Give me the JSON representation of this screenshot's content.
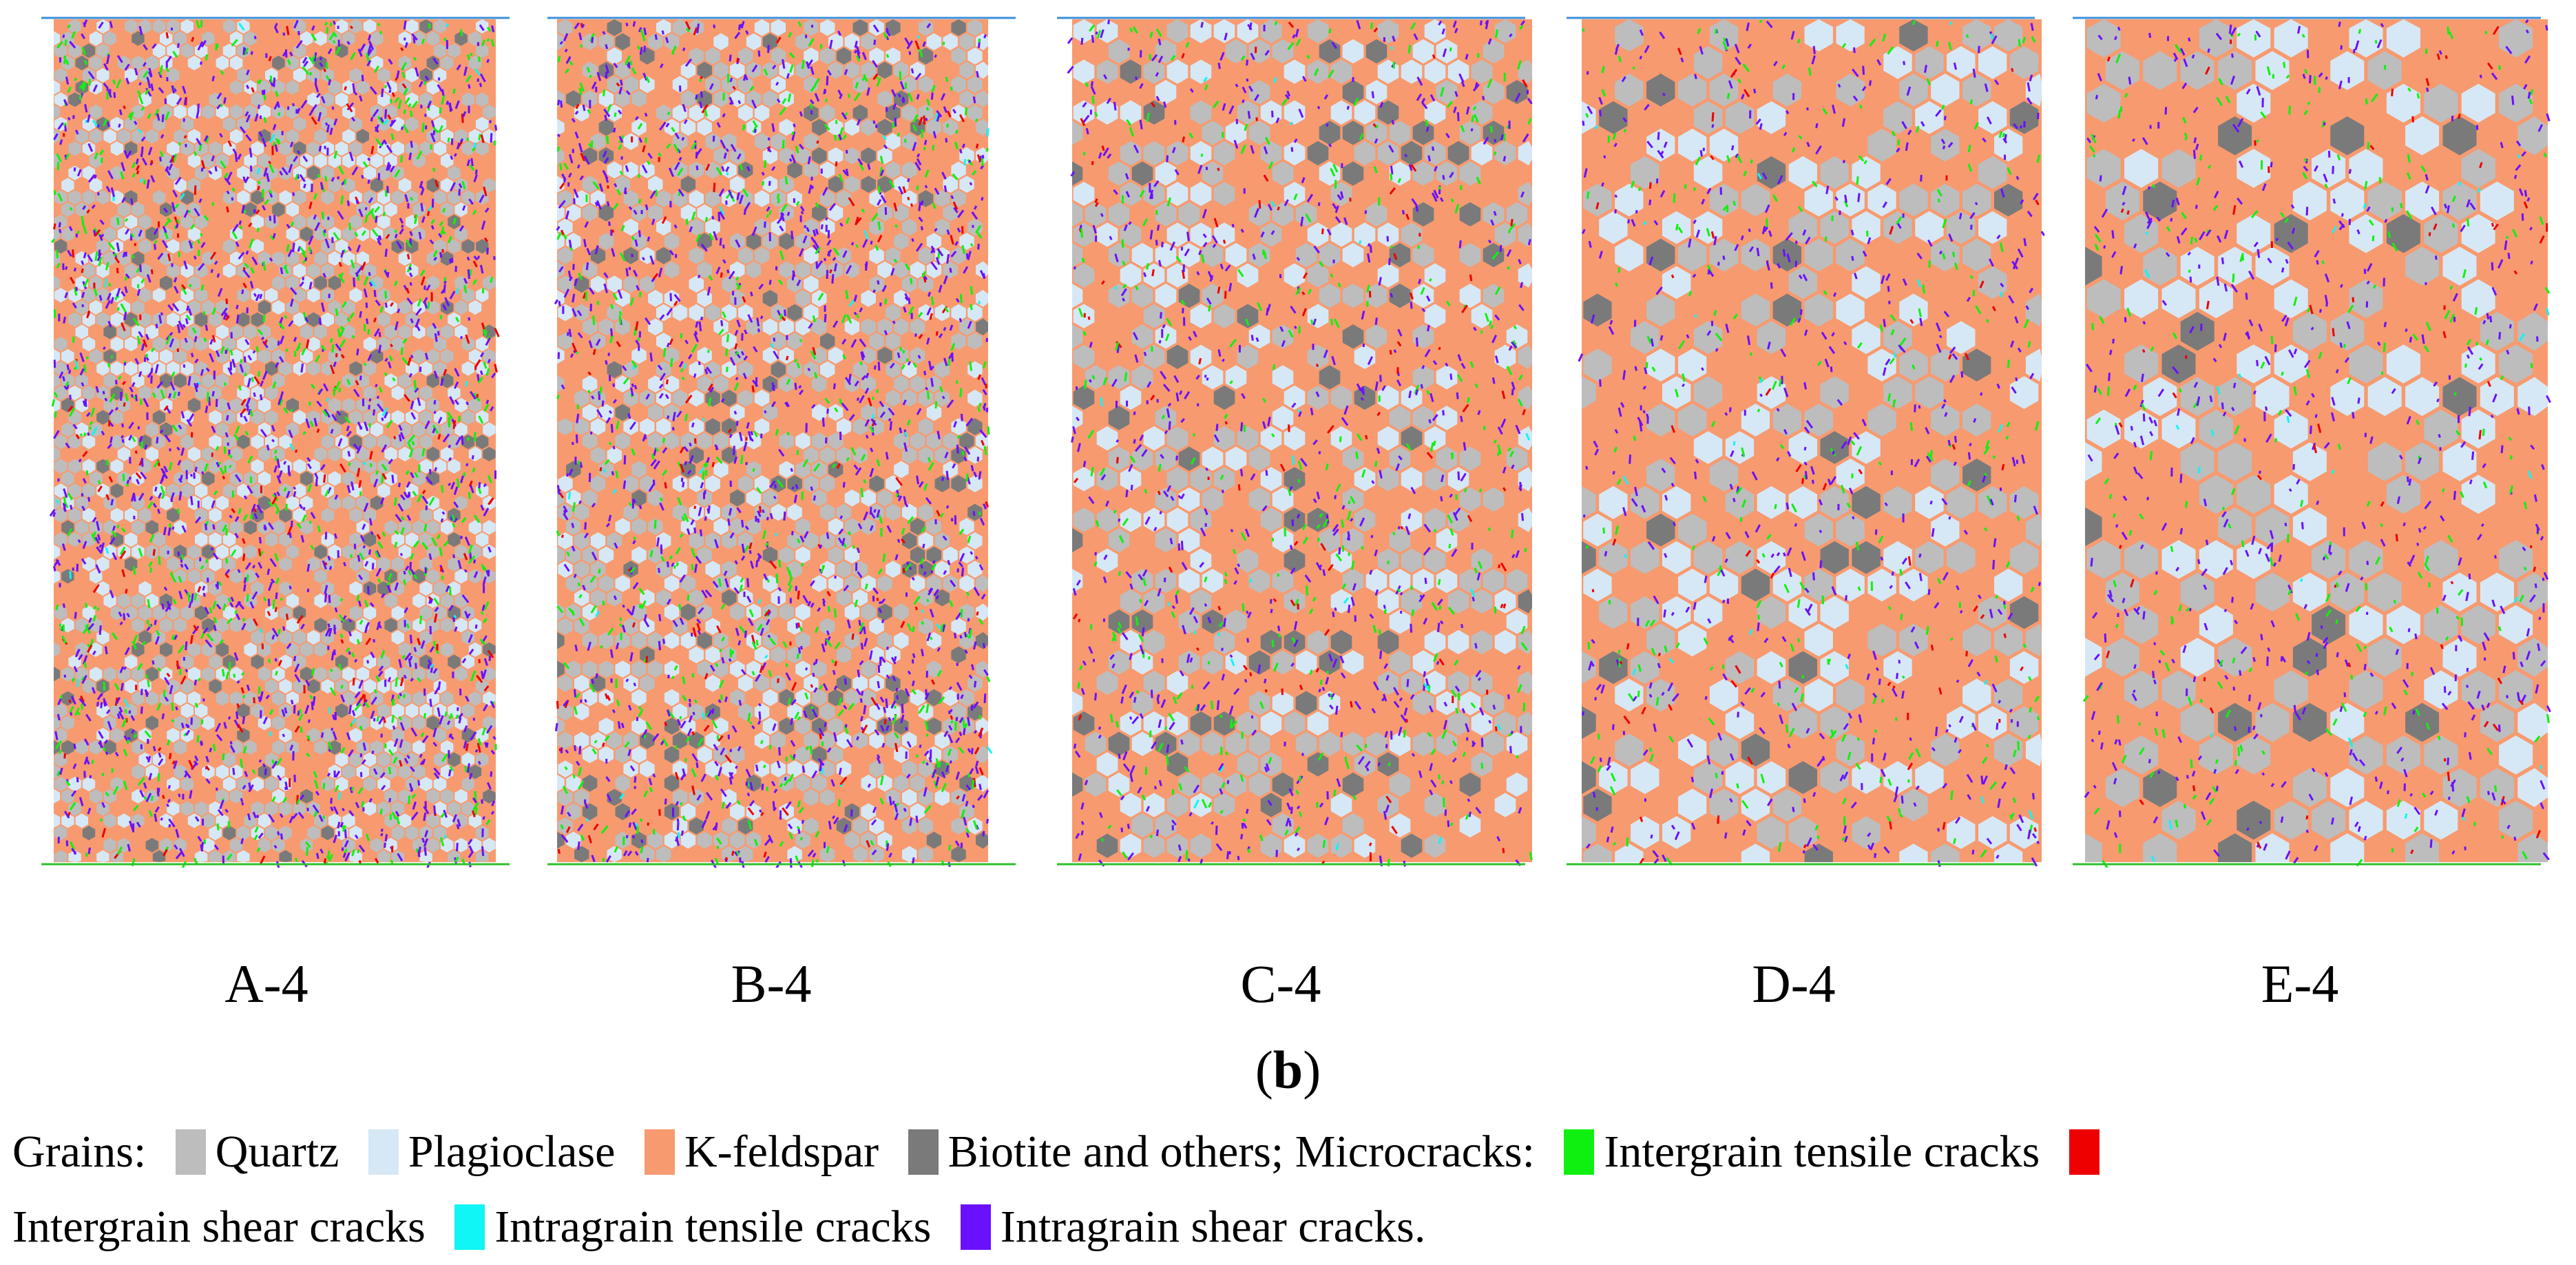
{
  "figure": {
    "subfigure_label_open": "(",
    "subfigure_label_letter": "b",
    "subfigure_label_close": ")",
    "panels": [
      {
        "label": "A-4",
        "crack_density": 0.95,
        "grain_scale": 0.6
      },
      {
        "label": "B-4",
        "crack_density": 0.75,
        "grain_scale": 0.7
      },
      {
        "label": "C-4",
        "crack_density": 0.45,
        "grain_scale": 1.0
      },
      {
        "label": "D-4",
        "crack_density": 0.35,
        "grain_scale": 1.35
      },
      {
        "label": "E-4",
        "crack_density": 0.35,
        "grain_scale": 1.6
      }
    ]
  },
  "legend": {
    "grains_heading": "Grains:",
    "microcracks_heading": "Microcracks:",
    "grains": [
      {
        "label": "Quartz",
        "color": "#bdbdbd"
      },
      {
        "label": "Plagioclase",
        "color": "#d6e8f5"
      },
      {
        "label": "K-feldspar",
        "color": "#f79a6f"
      },
      {
        "label": "Biotite and others;",
        "color": "#7a7a7a"
      }
    ],
    "cracks": [
      {
        "label": "Intergrain tensile cracks",
        "color": "#10f010"
      },
      {
        "label": "Intergrain shear cracks",
        "color": "#ee0000"
      },
      {
        "label": "Intragrain tensile cracks",
        "color": "#10f5f5"
      },
      {
        "label": "Intragrain shear cracks.",
        "color": "#6a10ff"
      }
    ]
  },
  "colors": {
    "platen_top": "#3a8fd8",
    "platen_bottom": "#2ec02e"
  }
}
